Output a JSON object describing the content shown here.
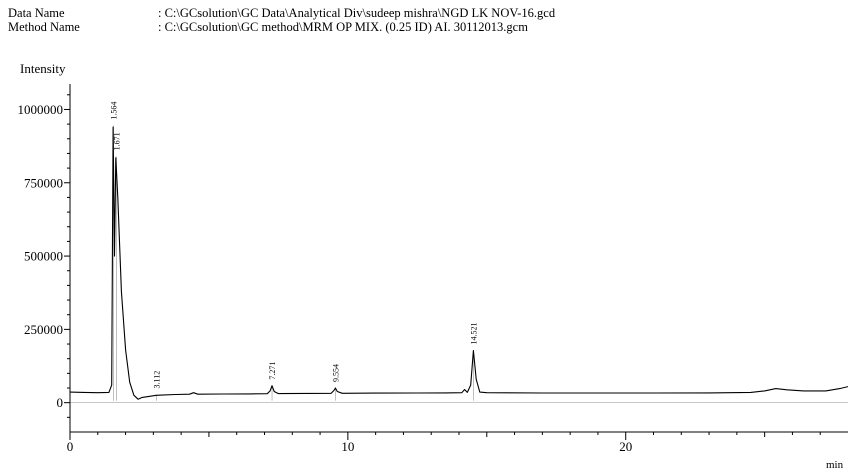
{
  "header": {
    "data_name_label": "Data Name",
    "data_name_value": ": C:\\GCsolution\\GC Data\\Analytical Div\\sudeep mishra\\NGD LK NOV-16.gcd",
    "method_name_label": "Method Name",
    "method_name_value": ": C:\\GCsolution\\GC method\\MRM OP MIX. (0.25 ID) AI. 30112013.gcm"
  },
  "chart_data": {
    "type": "line",
    "ylabel": "Intensity",
    "xlabel": "min",
    "xlim": [
      0,
      28
    ],
    "ylim": [
      -100000,
      1080000
    ],
    "x_ticks": [
      0,
      10,
      20
    ],
    "y_ticks": [
      0,
      250000,
      500000,
      750000,
      1000000
    ],
    "y_tick_labels": [
      "0",
      "250000",
      "500000",
      "750000",
      "1000000"
    ],
    "x_tick_labels": [
      "0",
      "10",
      "20"
    ],
    "peaks": [
      {
        "label": "1.564",
        "rt": 1.564,
        "height": 945000
      },
      {
        "label": "1.671",
        "rt": 1.671,
        "height": 840000
      },
      {
        "label": "3.112",
        "rt": 3.112,
        "height": 28000
      },
      {
        "label": "7.271",
        "rt": 7.271,
        "height": 58000
      },
      {
        "label": "9.554",
        "rt": 9.554,
        "height": 50000
      },
      {
        "label": "14.521",
        "rt": 14.521,
        "height": 178000
      }
    ],
    "series": [
      {
        "color": "#000000",
        "points": [
          [
            0,
            36000
          ],
          [
            0.5,
            35000
          ],
          [
            1.0,
            34000
          ],
          [
            1.4,
            35000
          ],
          [
            1.5,
            60000
          ],
          [
            1.55,
            940000
          ],
          [
            1.6,
            500000
          ],
          [
            1.65,
            835000
          ],
          [
            1.72,
            700000
          ],
          [
            1.85,
            380000
          ],
          [
            2.0,
            180000
          ],
          [
            2.15,
            70000
          ],
          [
            2.3,
            25000
          ],
          [
            2.45,
            12000
          ],
          [
            2.6,
            18000
          ],
          [
            2.9,
            22000
          ],
          [
            3.1,
            25000
          ],
          [
            3.3,
            26000
          ],
          [
            3.8,
            28000
          ],
          [
            4.3,
            29000
          ],
          [
            4.45,
            34000
          ],
          [
            4.6,
            29000
          ],
          [
            5.5,
            29500
          ],
          [
            6.5,
            30000
          ],
          [
            7.1,
            30500
          ],
          [
            7.2,
            40000
          ],
          [
            7.27,
            58000
          ],
          [
            7.35,
            38000
          ],
          [
            7.5,
            31000
          ],
          [
            8.5,
            31500
          ],
          [
            9.4,
            32000
          ],
          [
            9.5,
            42000
          ],
          [
            9.55,
            50000
          ],
          [
            9.62,
            38000
          ],
          [
            9.8,
            32000
          ],
          [
            11.0,
            32500
          ],
          [
            12.5,
            33000
          ],
          [
            13.5,
            33500
          ],
          [
            14.1,
            34000
          ],
          [
            14.2,
            45000
          ],
          [
            14.3,
            35000
          ],
          [
            14.42,
            60000
          ],
          [
            14.52,
            178000
          ],
          [
            14.62,
            80000
          ],
          [
            14.75,
            36000
          ],
          [
            15.0,
            34000
          ],
          [
            17.0,
            33000
          ],
          [
            19.0,
            33000
          ],
          [
            21.0,
            33000
          ],
          [
            23.0,
            33500
          ],
          [
            24.5,
            35000
          ],
          [
            25.0,
            40000
          ],
          [
            25.4,
            48000
          ],
          [
            25.8,
            44000
          ],
          [
            26.4,
            40000
          ],
          [
            27.2,
            40000
          ],
          [
            27.7,
            48000
          ],
          [
            28.0,
            55000
          ]
        ]
      }
    ]
  }
}
